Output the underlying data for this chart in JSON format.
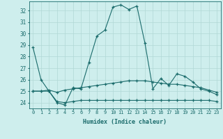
{
  "xlabel": "Humidex (Indice chaleur)",
  "bg_color": "#ceeeed",
  "line_color": "#1a6b6b",
  "grid_color": "#b0d8d6",
  "xlim": [
    -0.5,
    23.5
  ],
  "ylim": [
    23.5,
    32.8
  ],
  "yticks": [
    24,
    25,
    26,
    27,
    28,
    29,
    30,
    31,
    32
  ],
  "xticks": [
    0,
    1,
    2,
    3,
    4,
    5,
    6,
    7,
    8,
    9,
    10,
    11,
    12,
    13,
    14,
    15,
    16,
    17,
    18,
    19,
    20,
    21,
    22,
    23
  ],
  "series": [
    {
      "x": [
        0,
        1,
        2,
        3,
        4,
        5,
        6,
        7,
        8,
        9,
        10,
        11,
        12,
        13,
        14,
        15,
        16,
        17,
        18,
        19,
        20,
        21,
        22,
        23
      ],
      "y": [
        28.8,
        26.0,
        25.0,
        24.0,
        23.8,
        25.3,
        25.2,
        27.5,
        29.8,
        30.3,
        32.3,
        32.5,
        32.1,
        32.4,
        29.2,
        25.2,
        26.1,
        25.5,
        26.5,
        26.3,
        25.8,
        25.2,
        25.0,
        24.7
      ]
    },
    {
      "x": [
        0,
        1,
        2,
        3,
        4,
        5,
        6,
        7,
        8,
        9,
        10,
        11,
        12,
        13,
        14,
        15,
        16,
        17,
        18,
        19,
        20,
        21,
        22,
        23
      ],
      "y": [
        25.0,
        25.0,
        25.1,
        24.9,
        25.1,
        25.2,
        25.3,
        25.4,
        25.5,
        25.6,
        25.7,
        25.8,
        25.9,
        25.9,
        25.9,
        25.8,
        25.7,
        25.6,
        25.6,
        25.5,
        25.4,
        25.3,
        25.1,
        24.9
      ]
    },
    {
      "x": [
        0,
        1,
        2,
        3,
        4,
        5,
        6,
        7,
        8,
        9,
        10,
        11,
        12,
        13,
        14,
        15,
        16,
        17,
        18,
        19,
        20,
        21,
        22,
        23
      ],
      "y": [
        25.0,
        25.0,
        25.0,
        24.1,
        24.0,
        24.1,
        24.2,
        24.2,
        24.2,
        24.2,
        24.2,
        24.2,
        24.2,
        24.2,
        24.2,
        24.2,
        24.2,
        24.2,
        24.2,
        24.2,
        24.2,
        24.2,
        24.2,
        24.1
      ]
    }
  ]
}
